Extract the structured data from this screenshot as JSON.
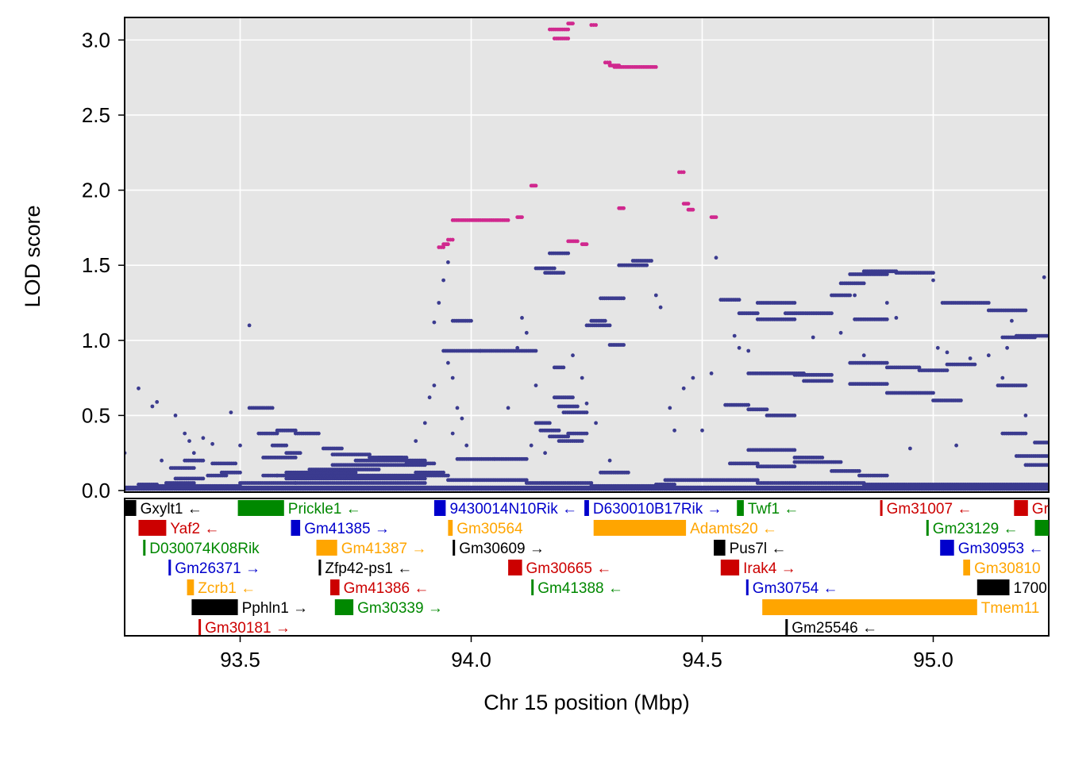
{
  "chart_data": {
    "type": "scatter",
    "xlabel": "Chr 15 position (Mbp)",
    "ylabel": "LOD score",
    "xlim": [
      93.25,
      95.25
    ],
    "ylim": [
      0,
      3.15
    ],
    "x_ticks": [
      93.5,
      94.0,
      94.5,
      95.0
    ],
    "y_ticks": [
      0.0,
      0.5,
      1.0,
      1.5,
      2.0,
      2.5,
      3.0
    ],
    "x_tick_labels": [
      "93.5",
      "94.0",
      "94.5",
      "95.0"
    ],
    "y_tick_labels": [
      "0.0",
      "0.5",
      "1.0",
      "1.5",
      "2.0",
      "2.5",
      "3.0"
    ],
    "grid": true,
    "colors": {
      "panel_bg": "#e5e5e5",
      "grid": "#ffffff",
      "snp": "#3b3b8f",
      "snp_highlight": "#d0288e"
    },
    "highlight_segments": [
      [
        94.17,
        94.21,
        3.07
      ],
      [
        94.18,
        94.21,
        3.01
      ],
      [
        94.21,
        94.22,
        3.11
      ],
      [
        94.26,
        94.27,
        3.1
      ],
      [
        94.29,
        94.3,
        2.85
      ],
      [
        94.31,
        94.4,
        2.82
      ],
      [
        94.3,
        94.32,
        2.83
      ],
      [
        94.45,
        94.46,
        2.12
      ],
      [
        94.46,
        94.47,
        1.91
      ],
      [
        94.47,
        94.48,
        1.87
      ],
      [
        94.52,
        94.53,
        1.82
      ],
      [
        94.32,
        94.33,
        1.88
      ],
      [
        94.13,
        94.14,
        2.03
      ],
      [
        93.96,
        94.08,
        1.8
      ],
      [
        94.1,
        94.11,
        1.82
      ],
      [
        93.93,
        93.94,
        1.62
      ],
      [
        93.94,
        93.95,
        1.64
      ],
      [
        93.95,
        93.96,
        1.67
      ],
      [
        94.21,
        94.23,
        1.66
      ],
      [
        94.24,
        94.25,
        1.64
      ]
    ],
    "snp_segments": [
      [
        93.25,
        95.25,
        0.01
      ],
      [
        93.25,
        95.25,
        0.02
      ],
      [
        93.3,
        93.5,
        0.03
      ],
      [
        93.5,
        93.9,
        0.05
      ],
      [
        93.6,
        93.9,
        0.08
      ],
      [
        93.55,
        93.95,
        0.1
      ],
      [
        93.6,
        93.75,
        0.12
      ],
      [
        93.65,
        93.8,
        0.14
      ],
      [
        93.7,
        93.9,
        0.17
      ],
      [
        93.75,
        93.9,
        0.2
      ],
      [
        93.8,
        93.85,
        0.22
      ],
      [
        93.57,
        93.6,
        0.3
      ],
      [
        93.6,
        93.63,
        0.25
      ],
      [
        93.55,
        93.62,
        0.22
      ],
      [
        93.28,
        93.32,
        0.04
      ],
      [
        93.34,
        93.4,
        0.05
      ],
      [
        93.36,
        93.42,
        0.08
      ],
      [
        93.43,
        93.47,
        0.1
      ],
      [
        93.46,
        93.5,
        0.12
      ],
      [
        93.35,
        93.4,
        0.15
      ],
      [
        93.38,
        93.42,
        0.2
      ],
      [
        93.44,
        93.49,
        0.18
      ],
      [
        93.52,
        93.57,
        0.55
      ],
      [
        93.54,
        93.58,
        0.38
      ],
      [
        93.58,
        93.62,
        0.4
      ],
      [
        93.62,
        93.67,
        0.38
      ],
      [
        93.68,
        93.72,
        0.28
      ],
      [
        93.7,
        93.78,
        0.24
      ],
      [
        93.78,
        93.86,
        0.22
      ],
      [
        93.86,
        93.92,
        0.18
      ],
      [
        93.88,
        93.94,
        0.12
      ],
      [
        93.94,
        94.02,
        0.93
      ],
      [
        94.02,
        94.14,
        0.93
      ],
      [
        93.96,
        94.0,
        1.13
      ],
      [
        93.97,
        94.05,
        0.21
      ],
      [
        94.05,
        94.12,
        0.21
      ],
      [
        93.95,
        94.12,
        0.07
      ],
      [
        94.12,
        94.26,
        0.05
      ],
      [
        94.26,
        94.42,
        0.03
      ],
      [
        94.42,
        94.62,
        0.07
      ],
      [
        94.62,
        94.85,
        0.05
      ],
      [
        94.85,
        95.25,
        0.04
      ],
      [
        94.14,
        94.18,
        1.48
      ],
      [
        94.16,
        94.2,
        1.45
      ],
      [
        94.17,
        94.21,
        1.58
      ],
      [
        94.18,
        94.2,
        0.82
      ],
      [
        94.18,
        94.22,
        0.62
      ],
      [
        94.19,
        94.23,
        0.56
      ],
      [
        94.2,
        94.25,
        0.52
      ],
      [
        94.14,
        94.17,
        0.45
      ],
      [
        94.15,
        94.19,
        0.4
      ],
      [
        94.17,
        94.21,
        0.36
      ],
      [
        94.19,
        94.24,
        0.33
      ],
      [
        94.21,
        94.25,
        0.38
      ],
      [
        94.25,
        94.3,
        1.1
      ],
      [
        94.26,
        94.29,
        1.13
      ],
      [
        94.28,
        94.33,
        1.28
      ],
      [
        94.3,
        94.33,
        0.97
      ],
      [
        94.28,
        94.34,
        0.12
      ],
      [
        94.32,
        94.38,
        1.5
      ],
      [
        94.35,
        94.39,
        1.53
      ],
      [
        94.4,
        94.44,
        0.04
      ],
      [
        94.54,
        94.58,
        1.27
      ],
      [
        94.58,
        94.62,
        1.18
      ],
      [
        94.62,
        94.7,
        1.25
      ],
      [
        94.62,
        94.7,
        1.14
      ],
      [
        94.68,
        94.78,
        1.18
      ],
      [
        94.7,
        94.78,
        0.77
      ],
      [
        94.6,
        94.72,
        0.78
      ],
      [
        94.72,
        94.78,
        0.73
      ],
      [
        94.55,
        94.6,
        0.57
      ],
      [
        94.6,
        94.64,
        0.54
      ],
      [
        94.64,
        94.7,
        0.5
      ],
      [
        94.56,
        94.62,
        0.18
      ],
      [
        94.62,
        94.7,
        0.16
      ],
      [
        94.7,
        94.8,
        0.19
      ],
      [
        94.78,
        94.84,
        0.13
      ],
      [
        94.84,
        94.9,
        0.1
      ],
      [
        94.6,
        94.7,
        0.27
      ],
      [
        94.7,
        94.76,
        0.22
      ],
      [
        94.78,
        94.82,
        1.3
      ],
      [
        94.8,
        94.85,
        1.38
      ],
      [
        94.82,
        94.9,
        1.44
      ],
      [
        94.85,
        94.92,
        1.46
      ],
      [
        94.92,
        95.0,
        1.45
      ],
      [
        94.83,
        94.9,
        1.14
      ],
      [
        94.82,
        94.9,
        0.85
      ],
      [
        94.9,
        94.97,
        0.82
      ],
      [
        94.97,
        95.03,
        0.8
      ],
      [
        95.03,
        95.09,
        0.84
      ],
      [
        94.82,
        94.9,
        0.71
      ],
      [
        94.9,
        95.0,
        0.65
      ],
      [
        95.0,
        95.06,
        0.6
      ],
      [
        95.02,
        95.12,
        1.25
      ],
      [
        95.12,
        95.2,
        1.2
      ],
      [
        95.15,
        95.22,
        1.02
      ],
      [
        95.18,
        95.25,
        1.03
      ],
      [
        95.14,
        95.2,
        0.7
      ],
      [
        95.15,
        95.2,
        0.38
      ],
      [
        95.18,
        95.25,
        0.23
      ],
      [
        95.22,
        95.25,
        0.32
      ],
      [
        95.2,
        95.25,
        0.17
      ]
    ],
    "snp_points": [
      [
        93.28,
        0.68
      ],
      [
        93.31,
        0.56
      ],
      [
        93.32,
        0.59
      ],
      [
        93.36,
        0.5
      ],
      [
        93.39,
        0.33
      ],
      [
        93.42,
        0.35
      ],
      [
        93.44,
        0.31
      ],
      [
        93.48,
        0.52
      ],
      [
        93.5,
        0.3
      ],
      [
        93.52,
        1.1
      ],
      [
        93.25,
        0.25
      ],
      [
        93.33,
        0.2
      ],
      [
        93.38,
        0.38
      ],
      [
        93.4,
        0.25
      ],
      [
        93.58,
        0.1
      ],
      [
        93.62,
        0.05
      ],
      [
        93.88,
        0.33
      ],
      [
        93.9,
        0.45
      ],
      [
        93.91,
        0.62
      ],
      [
        93.92,
        0.7
      ],
      [
        93.92,
        1.12
      ],
      [
        93.93,
        1.25
      ],
      [
        93.94,
        1.4
      ],
      [
        93.95,
        1.52
      ],
      [
        93.96,
        0.75
      ],
      [
        93.95,
        0.85
      ],
      [
        93.97,
        0.55
      ],
      [
        93.98,
        0.48
      ],
      [
        93.96,
        0.38
      ],
      [
        93.99,
        0.3
      ],
      [
        94.08,
        0.55
      ],
      [
        94.1,
        0.95
      ],
      [
        94.11,
        1.15
      ],
      [
        94.12,
        1.05
      ],
      [
        94.13,
        0.3
      ],
      [
        94.14,
        0.7
      ],
      [
        94.16,
        0.25
      ],
      [
        94.22,
        0.9
      ],
      [
        94.24,
        0.75
      ],
      [
        94.25,
        0.58
      ],
      [
        94.27,
        0.45
      ],
      [
        94.3,
        0.2
      ],
      [
        94.4,
        1.3
      ],
      [
        94.41,
        1.22
      ],
      [
        94.43,
        0.55
      ],
      [
        94.44,
        0.4
      ],
      [
        94.46,
        0.68
      ],
      [
        94.48,
        0.75
      ],
      [
        94.5,
        0.4
      ],
      [
        94.52,
        0.78
      ],
      [
        94.53,
        1.55
      ],
      [
        94.57,
        1.03
      ],
      [
        94.58,
        0.95
      ],
      [
        94.6,
        0.93
      ],
      [
        94.74,
        1.02
      ],
      [
        94.8,
        1.05
      ],
      [
        94.83,
        1.3
      ],
      [
        94.85,
        0.9
      ],
      [
        94.9,
        1.25
      ],
      [
        94.92,
        1.15
      ],
      [
        94.95,
        0.28
      ],
      [
        95.0,
        1.4
      ],
      [
        95.01,
        0.95
      ],
      [
        95.03,
        0.92
      ],
      [
        95.05,
        0.3
      ],
      [
        95.08,
        0.88
      ],
      [
        95.12,
        0.9
      ],
      [
        95.15,
        0.75
      ],
      [
        95.16,
        0.95
      ],
      [
        95.17,
        1.13
      ],
      [
        95.2,
        0.5
      ],
      [
        95.24,
        1.42
      ]
    ]
  },
  "genes": [
    {
      "name": "Gxylt1",
      "arrow": "←",
      "start": 93.25,
      "end": 93.275,
      "row": 0,
      "color": "#000000"
    },
    {
      "name": "Yaf2",
      "arrow": "←",
      "start": 93.28,
      "end": 93.34,
      "row": 1,
      "color": "#cc0000"
    },
    {
      "name": "D030074K08Rik",
      "arrow": "",
      "start": 93.29,
      "end": 93.295,
      "row": 2,
      "color": "#008800"
    },
    {
      "name": "Gm26371",
      "arrow": "→",
      "start": 93.345,
      "end": 93.35,
      "row": 3,
      "color": "#0000cc"
    },
    {
      "name": "Zcrb1",
      "arrow": "←",
      "start": 93.385,
      "end": 93.4,
      "row": 4,
      "color": "#ffa500"
    },
    {
      "name": "Pphln1",
      "arrow": "→",
      "start": 93.395,
      "end": 93.495,
      "row": 5,
      "color": "#000000"
    },
    {
      "name": "Gm30181",
      "arrow": "→",
      "start": 93.41,
      "end": 93.415,
      "row": 6,
      "color": "#cc0000"
    },
    {
      "name": "Prickle1",
      "arrow": "←",
      "start": 93.495,
      "end": 93.595,
      "row": 0,
      "color": "#008800"
    },
    {
      "name": "Gm41385",
      "arrow": "→",
      "start": 93.61,
      "end": 93.63,
      "row": 1,
      "color": "#0000cc"
    },
    {
      "name": "Gm41387",
      "arrow": "→",
      "start": 93.665,
      "end": 93.71,
      "row": 2,
      "color": "#ffa500"
    },
    {
      "name": "Zfp42-ps1",
      "arrow": "←",
      "start": 93.67,
      "end": 93.675,
      "row": 3,
      "color": "#000000"
    },
    {
      "name": "Gm41386",
      "arrow": "←",
      "start": 93.695,
      "end": 93.715,
      "row": 4,
      "color": "#cc0000"
    },
    {
      "name": "Gm30339",
      "arrow": "→",
      "start": 93.705,
      "end": 93.745,
      "row": 5,
      "color": "#008800"
    },
    {
      "name": "9430014N10Rik",
      "arrow": "←",
      "start": 93.92,
      "end": 93.945,
      "row": 0,
      "color": "#0000cc"
    },
    {
      "name": "Gm30564",
      "arrow": "",
      "start": 93.95,
      "end": 93.96,
      "row": 1,
      "color": "#ffa500"
    },
    {
      "name": "Gm30609",
      "arrow": "→",
      "start": 93.96,
      "end": 93.965,
      "row": 2,
      "color": "#000000"
    },
    {
      "name": "Gm30665",
      "arrow": "←",
      "start": 94.08,
      "end": 94.11,
      "row": 3,
      "color": "#cc0000"
    },
    {
      "name": "Gm41388",
      "arrow": "←",
      "start": 94.13,
      "end": 94.135,
      "row": 4,
      "color": "#008800"
    },
    {
      "name": "D630010B17Rik",
      "arrow": "→",
      "start": 94.245,
      "end": 94.255,
      "row": 0,
      "color": "#0000cc"
    },
    {
      "name": "Adamts20",
      "arrow": "←",
      "start": 94.265,
      "end": 94.465,
      "row": 1,
      "color": "#ffa500"
    },
    {
      "name": "Twf1",
      "arrow": "←",
      "start": 94.575,
      "end": 94.59,
      "row": 0,
      "color": "#008800"
    },
    {
      "name": "Pus7l",
      "arrow": "←",
      "start": 94.525,
      "end": 94.55,
      "row": 2,
      "color": "#000000"
    },
    {
      "name": "Irak4",
      "arrow": "→",
      "start": 94.54,
      "end": 94.58,
      "row": 3,
      "color": "#cc0000"
    },
    {
      "name": "Gm30754",
      "arrow": "←",
      "start": 94.595,
      "end": 94.6,
      "row": 4,
      "color": "#0000cc"
    },
    {
      "name": "Tmem11",
      "arrow": "",
      "start": 94.63,
      "end": 95.095,
      "row": 5,
      "color": "#ffa500"
    },
    {
      "name": "Gm25546",
      "arrow": "←",
      "start": 94.68,
      "end": 94.685,
      "row": 6,
      "color": "#000000"
    },
    {
      "name": "Gm31007",
      "arrow": "←",
      "start": 94.885,
      "end": 94.89,
      "row": 0,
      "color": "#cc0000"
    },
    {
      "name": "Gm23129",
      "arrow": "←",
      "start": 94.985,
      "end": 94.99,
      "row": 1,
      "color": "#008800"
    },
    {
      "name": "Gm30953",
      "arrow": "←",
      "start": 95.015,
      "end": 95.045,
      "row": 2,
      "color": "#0000cc"
    },
    {
      "name": "Gm30810",
      "arrow": "",
      "start": 95.065,
      "end": 95.08,
      "row": 3,
      "color": "#ffa500"
    },
    {
      "name": "1700",
      "arrow": "",
      "start": 95.095,
      "end": 95.165,
      "row": 4,
      "color": "#000000"
    },
    {
      "name": "Gr",
      "arrow": "",
      "start": 95.175,
      "end": 95.205,
      "row": 0,
      "color": "#cc0000"
    },
    {
      "name": "",
      "arrow": "",
      "start": 95.22,
      "end": 95.25,
      "row": 1,
      "color": "#008800"
    }
  ]
}
